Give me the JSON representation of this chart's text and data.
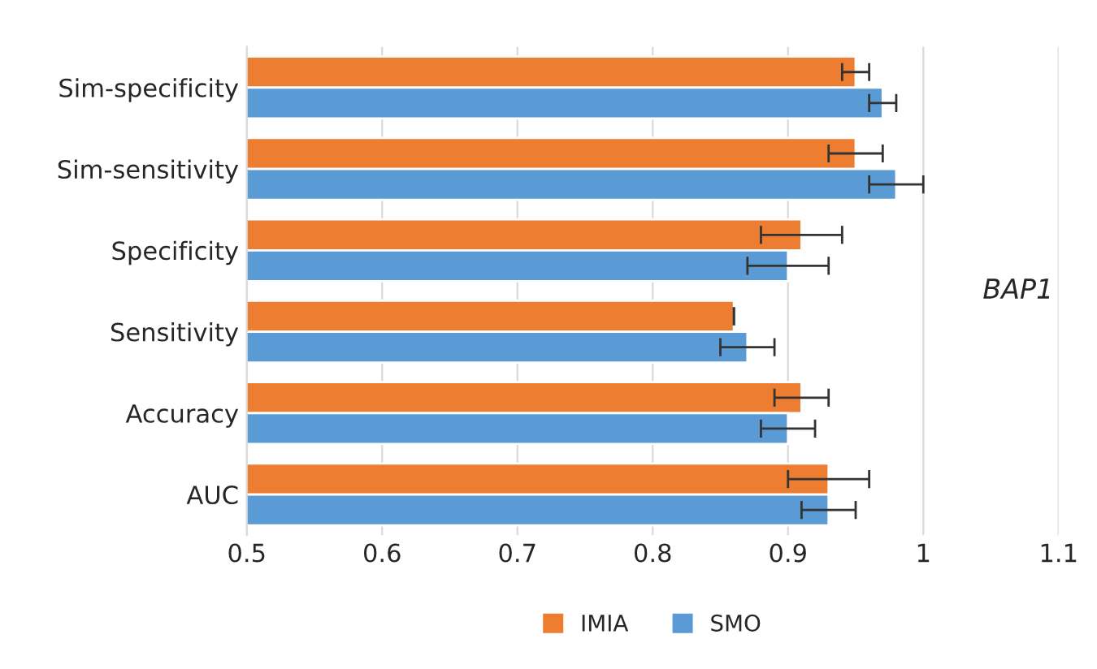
{
  "chart_data": {
    "type": "bar",
    "orientation": "horizontal",
    "categories": [
      "Sim-specificity",
      "Sim-sensitivity",
      "Specificity",
      "Sensitivity",
      "Accuracy",
      "AUC"
    ],
    "series": [
      {
        "name": "IMIA",
        "color": "#ed7d31",
        "values": [
          0.95,
          0.95,
          0.91,
          0.86,
          0.91,
          0.93
        ],
        "errors": [
          0.01,
          0.02,
          0.03,
          0,
          0.02,
          0.03
        ]
      },
      {
        "name": "SMO",
        "color": "#5b9bd5",
        "values": [
          0.97,
          0.98,
          0.9,
          0.87,
          0.9,
          0.93
        ],
        "errors": [
          0.01,
          0.02,
          0.03,
          0.02,
          0.02,
          0.02
        ]
      }
    ],
    "xlim": [
      0.5,
      1.1
    ],
    "xticks": [
      0.5,
      0.6,
      0.7,
      0.8,
      0.9,
      1,
      1.1
    ],
    "grid": "x",
    "legend": "bottom",
    "annotations": [
      "BAP1"
    ]
  }
}
